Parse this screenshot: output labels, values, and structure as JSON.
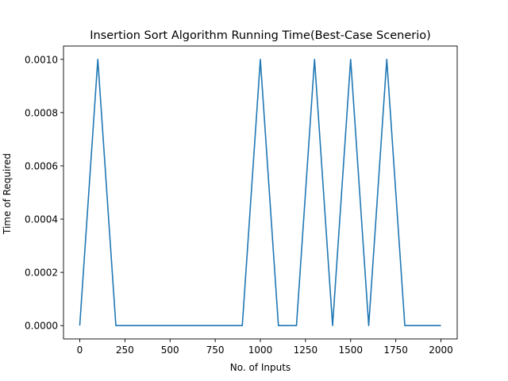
{
  "chart_data": {
    "type": "line",
    "title": "Insertion Sort Algorithm Running Time(Best-Case Scenerio)",
    "xlabel": "No. of Inputs",
    "ylabel": "Time of Required",
    "xlim": [
      -90,
      2090
    ],
    "ylim": [
      -5e-05,
      0.00105
    ],
    "xticks": [
      0,
      250,
      500,
      750,
      1000,
      1250,
      1500,
      1750,
      2000
    ],
    "xtick_labels": [
      "0",
      "250",
      "500",
      "750",
      "1000",
      "1250",
      "1500",
      "1750",
      "2000"
    ],
    "yticks": [
      0,
      0.0002,
      0.0004,
      0.0006,
      0.0008,
      0.001
    ],
    "ytick_labels": [
      "0.0000",
      "0.0002",
      "0.0004",
      "0.0006",
      "0.0008",
      "0.0010"
    ],
    "grid": false,
    "line_color": "#1f77b4",
    "series": [
      {
        "x": [
          0,
          100,
          200,
          300,
          400,
          500,
          600,
          700,
          800,
          900,
          1000,
          1100,
          1200,
          1300,
          1400,
          1500,
          1600,
          1700,
          1800,
          1900,
          2000
        ],
        "y": [
          0,
          0.001,
          0,
          0,
          0,
          0,
          0,
          0,
          0,
          0,
          0.001,
          0,
          0,
          0.001,
          0,
          0.001,
          0,
          0.001,
          0,
          0,
          0
        ]
      }
    ]
  }
}
